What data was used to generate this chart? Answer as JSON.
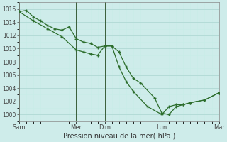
{
  "xlabel": "Pression niveau de la mer( hPa )",
  "bg_color": "#ceecea",
  "grid_major_color": "#b0d8d4",
  "grid_minor_color": "#c8ece8",
  "line_color": "#2d6e2d",
  "ylim": [
    999.0,
    1017.0
  ],
  "yticks": [
    1000,
    1002,
    1004,
    1006,
    1008,
    1010,
    1012,
    1014,
    1016
  ],
  "xlim": [
    0.0,
    7.0
  ],
  "day_vlines": [
    0.0,
    2.0,
    3.0,
    5.0,
    7.0
  ],
  "xtick_positions": [
    0.0,
    2.0,
    3.0,
    5.0,
    7.0
  ],
  "xtick_labels": [
    "Sam",
    "Mer",
    "Dim",
    "Lun",
    "Mar"
  ],
  "line1_x": [
    0.0,
    0.25,
    0.5,
    0.75,
    1.0,
    1.25,
    1.5,
    1.75,
    2.0,
    2.25,
    2.5,
    2.75,
    3.0,
    3.25,
    3.5,
    3.75,
    4.0,
    4.25,
    4.75,
    5.0,
    5.25,
    5.5,
    5.75,
    6.0,
    6.5,
    7.0
  ],
  "line1_y": [
    1015.6,
    1015.8,
    1014.8,
    1014.2,
    1013.5,
    1013.0,
    1012.8,
    1013.3,
    1011.5,
    1011.0,
    1010.8,
    1010.2,
    1010.4,
    1010.4,
    1009.5,
    1007.2,
    1005.5,
    1004.8,
    1002.5,
    1000.2,
    1000.0,
    1001.2,
    1001.5,
    1001.8,
    1002.2,
    1003.3
  ],
  "line2_x": [
    0.0,
    0.5,
    1.0,
    1.5,
    2.0,
    2.25,
    2.5,
    2.75,
    3.0,
    3.25,
    3.5,
    3.75,
    4.0,
    4.5,
    5.0,
    5.25,
    5.5,
    5.75,
    6.0,
    6.5,
    7.0
  ],
  "line2_y": [
    1015.6,
    1014.2,
    1013.0,
    1011.8,
    1009.8,
    1009.5,
    1009.2,
    1009.0,
    1010.4,
    1010.4,
    1007.2,
    1005.0,
    1003.5,
    1001.2,
    1000.0,
    1001.2,
    1001.5,
    1001.5,
    1001.8,
    1002.2,
    1003.3
  ]
}
